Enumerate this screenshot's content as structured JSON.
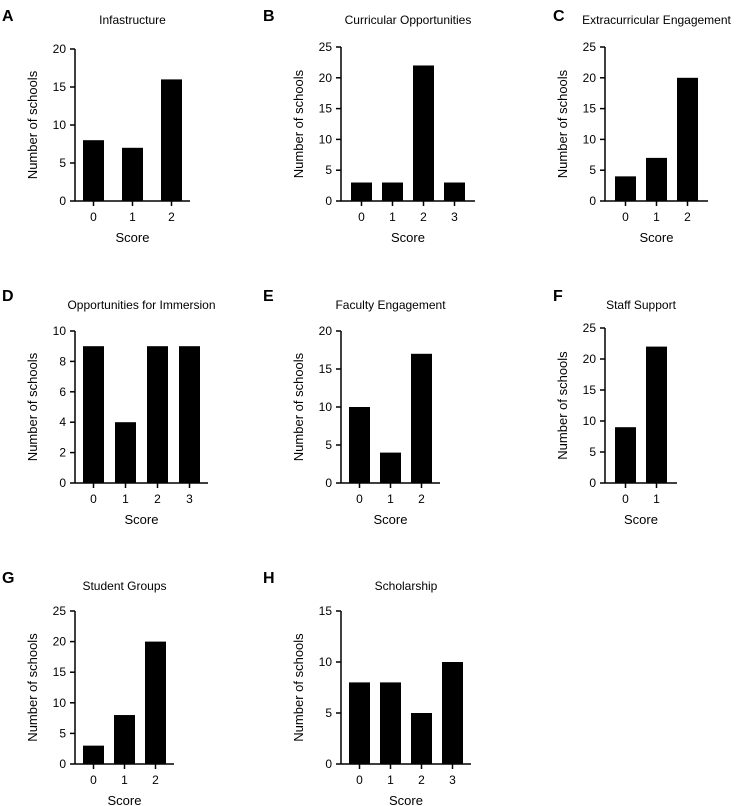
{
  "chart_data": [
    {
      "letter": "A",
      "type": "bar",
      "title": "Infastructure",
      "xlabel": "Score",
      "ylabel": "Number of schools",
      "categories": [
        "0",
        "1",
        "2"
      ],
      "values": [
        8,
        7,
        16
      ],
      "ylim": [
        0,
        20
      ],
      "yticks": [
        0,
        5,
        10,
        15,
        20
      ]
    },
    {
      "letter": "B",
      "type": "bar",
      "title": "Curricular Opportunities",
      "xlabel": "Score",
      "ylabel": "Number of schools",
      "categories": [
        "0",
        "1",
        "2",
        "3"
      ],
      "values": [
        3,
        3,
        22,
        3
      ],
      "ylim": [
        0,
        25
      ],
      "yticks": [
        0,
        5,
        10,
        15,
        20,
        25
      ]
    },
    {
      "letter": "C",
      "type": "bar",
      "title": "Extracurricular Engagement",
      "xlabel": "Score",
      "ylabel": "Number of schools",
      "categories": [
        "0",
        "1",
        "2"
      ],
      "values": [
        4,
        7,
        20
      ],
      "ylim": [
        0,
        25
      ],
      "yticks": [
        0,
        5,
        10,
        15,
        20,
        25
      ]
    },
    {
      "letter": "D",
      "type": "bar",
      "title": "Opportunities for Immersion",
      "xlabel": "Score",
      "ylabel": "Number of schools",
      "categories": [
        "0",
        "1",
        "2",
        "3"
      ],
      "values": [
        9,
        4,
        9,
        9
      ],
      "ylim": [
        0,
        10
      ],
      "yticks": [
        0,
        2,
        4,
        6,
        8,
        10
      ]
    },
    {
      "letter": "E",
      "type": "bar",
      "title": "Faculty Engagement",
      "xlabel": "Score",
      "ylabel": "Number of schools",
      "categories": [
        "0",
        "1",
        "2"
      ],
      "values": [
        10,
        4,
        17
      ],
      "ylim": [
        0,
        20
      ],
      "yticks": [
        0,
        5,
        10,
        15,
        20
      ]
    },
    {
      "letter": "F",
      "type": "bar",
      "title": "Staff Support",
      "xlabel": "Score",
      "ylabel": "Number of schools",
      "categories": [
        "0",
        "1"
      ],
      "values": [
        9,
        22
      ],
      "ylim": [
        0,
        25
      ],
      "yticks": [
        0,
        5,
        10,
        15,
        20,
        25
      ]
    },
    {
      "letter": "G",
      "type": "bar",
      "title": "Student Groups",
      "xlabel": "Score",
      "ylabel": "Number of schools",
      "categories": [
        "0",
        "1",
        "2"
      ],
      "values": [
        3,
        8,
        20
      ],
      "ylim": [
        0,
        25
      ],
      "yticks": [
        0,
        5,
        10,
        15,
        20,
        25
      ]
    },
    {
      "letter": "H",
      "type": "bar",
      "title": "Scholarship",
      "xlabel": "Score",
      "ylabel": "Number of schools",
      "categories": [
        "0",
        "1",
        "2",
        "3"
      ],
      "values": [
        8,
        8,
        5,
        10
      ],
      "ylim": [
        0,
        15
      ],
      "yticks": [
        0,
        5,
        10,
        15
      ]
    }
  ]
}
